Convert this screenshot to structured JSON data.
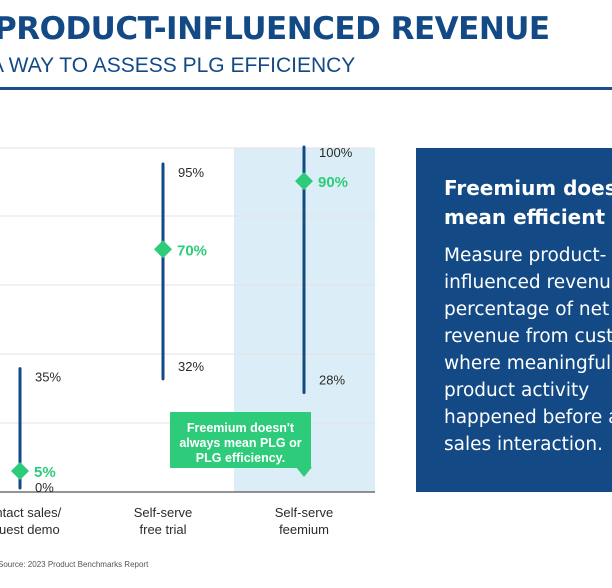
{
  "header": {
    "title": "PRODUCT-INFLUENCED REVENUE",
    "subtitle": "A WAY TO ASSESS PLG EFFICIENCY"
  },
  "chart_data": {
    "type": "range",
    "ylim": [
      0,
      100
    ],
    "categories": [
      "Contact sales/\nrequest demo",
      "Self-serve\nfree trial",
      "Self-serve\nfeemium"
    ],
    "series": [
      {
        "name": "Contact sales/ request demo",
        "low": 0,
        "high": 35,
        "mid": 5,
        "low_label": "0%",
        "high_label": "35%",
        "mid_label": "5%"
      },
      {
        "name": "Self-serve free trial",
        "low": 32,
        "high": 95,
        "mid": 70,
        "low_label": "32%",
        "high_label": "95%",
        "mid_label": "70%"
      },
      {
        "name": "Self-serve feemium",
        "low": 28,
        "high": 100,
        "mid": 90,
        "low_label": "28%",
        "high_label": "100%",
        "mid_label": "90%"
      }
    ],
    "highlighted_category": "Self-serve\nfeemium",
    "grid": true,
    "colors": {
      "range_line": "#134a86",
      "marker": "#2ecc7a",
      "highlight": "#dbeef7",
      "grid": "#e3e3e3"
    }
  },
  "callout": {
    "text": "Freemium doesn't always mean PLG or PLG efficiency."
  },
  "panel": {
    "title": "Freemium doesn't\nmean efficient",
    "body": "Measure product-\ninfluenced revenue as a\npercentage of net new\nrevenue from customers\nwhere meaningful\nproduct activity\nhappened before a\nsales interaction."
  },
  "footer": {
    "source": "Source: 2023 Product Benchmarks Report"
  }
}
